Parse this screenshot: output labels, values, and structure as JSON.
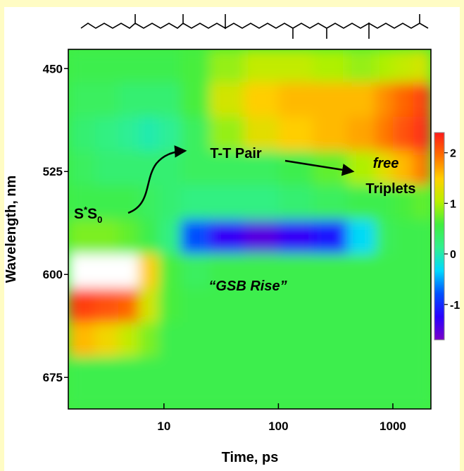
{
  "chart_data": {
    "type": "heatmap",
    "xlabel": "Time, ps",
    "ylabel": "Wavelength, nm",
    "x_edges": [
      1.46,
      2.5,
      4,
      6,
      9,
      14,
      25,
      50,
      100,
      200,
      400,
      700,
      1000,
      1500,
      2150
    ],
    "y_edges": [
      436,
      460,
      485,
      510,
      535,
      560,
      585,
      610,
      635,
      660,
      698
    ],
    "z": [
      [
        0.5,
        0.5,
        0.5,
        0.5,
        0.5,
        0.6,
        0.9,
        1.1,
        1.1,
        1.0,
        0.9,
        1.0,
        1.1,
        1.2
      ],
      [
        0.4,
        0.4,
        0.3,
        0.3,
        0.3,
        0.6,
        1.2,
        1.5,
        1.6,
        1.6,
        1.6,
        1.8,
        2.0,
        2.2
      ],
      [
        0.3,
        0.2,
        0.1,
        0.0,
        0.1,
        0.4,
        0.9,
        1.3,
        1.5,
        1.6,
        1.7,
        1.9,
        2.1,
        2.3
      ],
      [
        0.4,
        0.3,
        0.3,
        0.3,
        0.3,
        0.4,
        0.4,
        0.4,
        0.5,
        0.7,
        1.0,
        1.3,
        1.6,
        1.9
      ],
      [
        0.5,
        0.5,
        0.5,
        0.4,
        0.3,
        0.2,
        0.2,
        0.2,
        0.3,
        0.4,
        0.5,
        0.5,
        0.6,
        0.7
      ],
      [
        0.8,
        0.8,
        0.7,
        0.5,
        0.2,
        -0.8,
        -1.3,
        -1.5,
        -1.3,
        -1.1,
        -0.3,
        0.4,
        0.5,
        0.5
      ],
      [
        3.0,
        3.0,
        3.0,
        1.5,
        0.6,
        0.4,
        0.5,
        0.5,
        0.5,
        0.5,
        0.5,
        0.5,
        0.5,
        0.5
      ],
      [
        2.2,
        2.1,
        2.0,
        1.2,
        0.6,
        0.5,
        0.5,
        0.5,
        0.5,
        0.5,
        0.5,
        0.5,
        0.5,
        0.5
      ],
      [
        1.6,
        1.4,
        1.1,
        0.8,
        0.5,
        0.5,
        0.5,
        0.5,
        0.5,
        0.5,
        0.5,
        0.5,
        0.5,
        0.5
      ],
      [
        0.5,
        0.5,
        0.5,
        0.5,
        0.5,
        0.5,
        0.5,
        0.5,
        0.5,
        0.5,
        0.5,
        0.5,
        0.5,
        0.5
      ]
    ],
    "xscale": "log",
    "xlim": [
      1.46,
      2150
    ],
    "xticks": [
      10,
      100,
      1000
    ],
    "ylim": [
      436,
      698
    ],
    "yticks": [
      450,
      525,
      600,
      675
    ],
    "zlim": [
      -1.7,
      2.4
    ],
    "zticks": [
      2,
      1,
      0,
      -1
    ],
    "colormap": [
      "#7a00c8",
      "#2a00ff",
      "#0050ff",
      "#00d8ff",
      "#30f090",
      "#40ee40",
      "#b8f000",
      "#ffd000",
      "#ff7000",
      "#ff1a1a"
    ],
    "over_color": "#ffffff",
    "annotations": {
      "tt_pair": "T-T Pair",
      "free": "free",
      "triplets": "Triplets",
      "gsb": "“GSB Rise”",
      "s_state": [
        "S",
        "*",
        "S",
        "0"
      ]
    }
  }
}
